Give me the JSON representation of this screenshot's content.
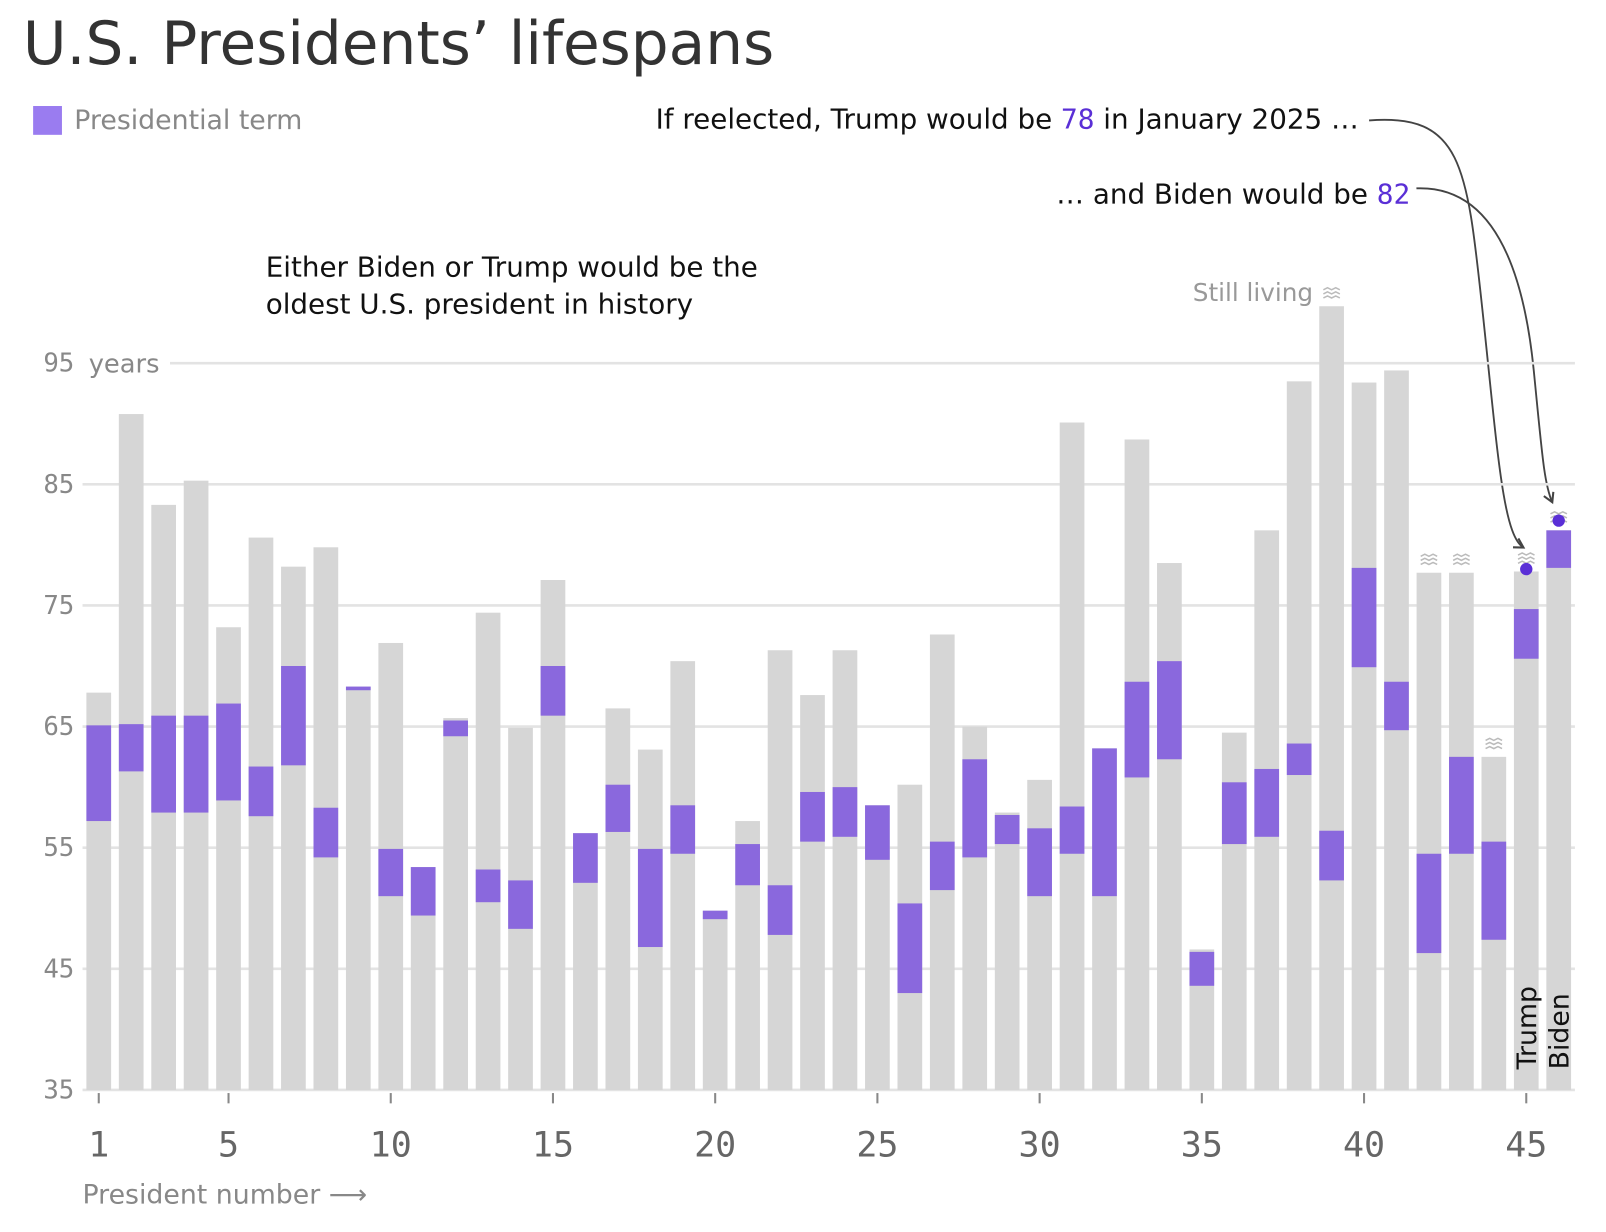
{
  "chart_data": {
    "type": "range-bar",
    "title": "U.S. Presidents’ lifespans",
    "x_label": "President number ⟶",
    "y_unit_label": "years",
    "x": [
      1,
      2,
      3,
      4,
      5,
      6,
      7,
      8,
      9,
      10,
      11,
      12,
      13,
      14,
      15,
      16,
      17,
      18,
      19,
      20,
      21,
      22,
      23,
      24,
      25,
      26,
      27,
      28,
      29,
      30,
      31,
      32,
      33,
      34,
      35,
      36,
      37,
      38,
      39,
      40,
      41,
      42,
      43,
      44,
      45,
      46
    ],
    "lifespan": {
      "color": "#d6d6d6",
      "values": [
        67.8,
        90.8,
        83.3,
        85.3,
        73.2,
        80.6,
        78.2,
        79.8,
        68.3,
        71.9,
        53.4,
        65.7,
        74.4,
        64.9,
        77.1,
        56.2,
        66.5,
        63.1,
        70.4,
        49.8,
        57.2,
        71.3,
        67.6,
        71.3,
        58.5,
        60.2,
        72.6,
        65.0,
        57.9,
        60.6,
        90.1,
        63.2,
        88.7,
        78.5,
        46.6,
        64.5,
        81.2,
        93.5,
        99.7,
        93.4,
        94.4,
        77.7,
        77.7,
        62.5,
        77.8,
        81.2
      ]
    },
    "term": {
      "name": "Presidential term",
      "color": "#8a68dd",
      "start": [
        57.2,
        61.3,
        57.9,
        57.9,
        58.9,
        57.6,
        61.8,
        54.2,
        68.0,
        51.0,
        49.4,
        64.2,
        50.5,
        48.3,
        65.9,
        52.1,
        56.3,
        46.8,
        54.5,
        49.1,
        51.9,
        47.8,
        55.5,
        55.9,
        54.0,
        43.0,
        51.5,
        54.2,
        55.3,
        51.0,
        54.5,
        51.0,
        60.8,
        62.3,
        43.6,
        55.3,
        55.9,
        61.0,
        52.3,
        69.9,
        64.7,
        46.3,
        54.5,
        47.4,
        70.6,
        78.1
      ],
      "end": [
        65.1,
        65.2,
        65.9,
        65.9,
        66.9,
        61.7,
        70.0,
        58.3,
        68.3,
        54.9,
        53.4,
        65.5,
        53.2,
        52.3,
        70.0,
        56.2,
        60.2,
        54.9,
        58.5,
        49.8,
        55.3,
        51.9,
        59.6,
        60.0,
        58.5,
        50.4,
        55.5,
        62.3,
        57.7,
        56.6,
        58.4,
        63.2,
        68.7,
        70.4,
        46.4,
        60.4,
        61.5,
        63.6,
        56.4,
        78.1,
        68.7,
        54.5,
        62.5,
        55.5,
        74.7,
        81.2
      ]
    },
    "still_living_label": "Still living",
    "still_living": [
      false,
      false,
      false,
      false,
      false,
      false,
      false,
      false,
      false,
      false,
      false,
      false,
      false,
      false,
      false,
      false,
      false,
      false,
      false,
      false,
      false,
      false,
      false,
      false,
      false,
      false,
      false,
      false,
      false,
      false,
      false,
      false,
      false,
      false,
      false,
      false,
      false,
      false,
      true,
      false,
      false,
      true,
      true,
      true,
      true,
      true
    ],
    "bar_labels": [
      {
        "x": 45,
        "text": "Trump"
      },
      {
        "x": 46,
        "text": "Biden"
      }
    ],
    "annotations": [
      {
        "before": "If reelected, Trump would be ",
        "value": 78,
        "after": " in January 2025 …"
      },
      {
        "before": "… and Biden would be ",
        "value": 82
      }
    ],
    "highlight_color": "#5a2fd6",
    "note": [
      "Either Biden or Trump would be the",
      "oldest U.S. president in history"
    ],
    "xlim": [
      0.5,
      46.5
    ],
    "xticks": [
      1,
      5,
      10,
      15,
      20,
      25,
      30,
      35,
      40,
      45
    ],
    "ylim": [
      35,
      100
    ],
    "yticks": [
      35,
      45,
      55,
      65,
      75,
      85,
      95
    ],
    "grid": true
  }
}
